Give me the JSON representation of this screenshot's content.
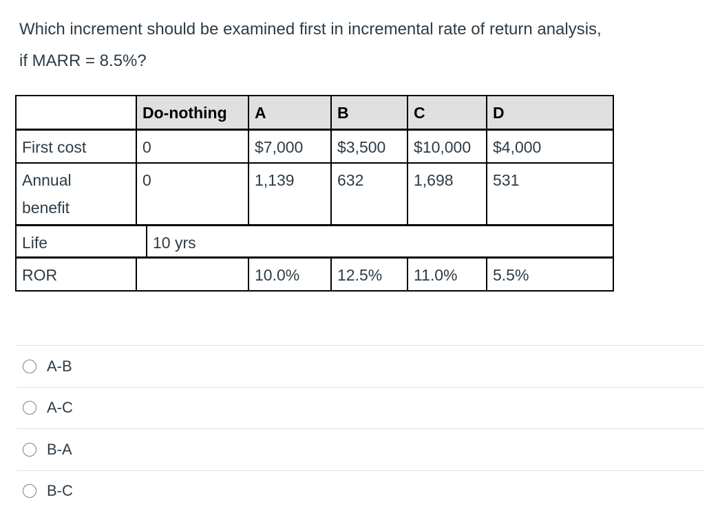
{
  "question": {
    "line1": "Which increment should be examined first in incremental rate of return analysis,",
    "line2": "if MARR = 8.5%?"
  },
  "table": {
    "header": [
      "",
      "Do-nothing",
      "A",
      "B",
      "C",
      "D"
    ],
    "rows": [
      {
        "label": "First cost",
        "values": [
          "0",
          "$7,000",
          "$3,500",
          "$10,000",
          "$4,000"
        ]
      },
      {
        "label": "Annual benefit",
        "values": [
          "0",
          "1,139",
          "632",
          "1,698",
          "531"
        ]
      },
      {
        "label": "Life",
        "merged_value": "10 yrs"
      },
      {
        "label": "ROR",
        "values": [
          "",
          "10.0%",
          "12.5%",
          "11.0%",
          "5.5%"
        ]
      }
    ]
  },
  "options": [
    {
      "label": "A-B",
      "selected": false
    },
    {
      "label": "A-C",
      "selected": false
    },
    {
      "label": "B-A",
      "selected": false
    },
    {
      "label": "B-C",
      "selected": false
    }
  ],
  "colors": {
    "text": "#2d3b45",
    "header_text": "#000000",
    "table_header_bg": "#e0e0e0",
    "table_border": "#000000",
    "option_divider": "#e2e2e2",
    "radio_border": "#7e7e7e",
    "background": "#ffffff"
  }
}
